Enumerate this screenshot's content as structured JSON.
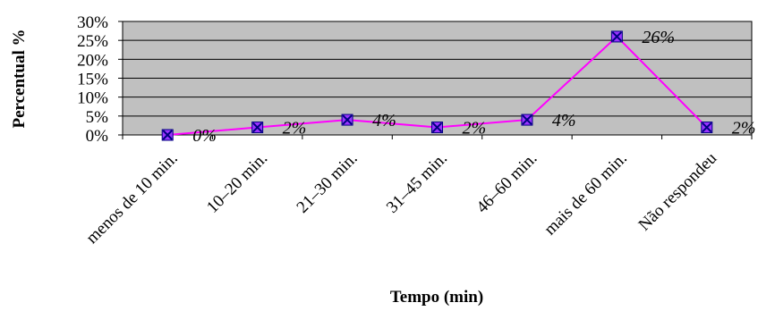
{
  "chart_data": {
    "type": "line",
    "ylabel": "Percentual %",
    "xlabel": "Tempo (min)",
    "ylim": [
      0,
      30
    ],
    "y_tick_labels": [
      "30%",
      "25%",
      "20%",
      "15%",
      "10%",
      "5%",
      "0%"
    ],
    "categories": [
      "menos de 10 min.",
      "10–20 min.",
      "21–30 min.",
      "31–45 min.",
      "46–60 min.",
      "mais de 60 min.",
      "Não respondeu"
    ],
    "series": [
      {
        "values": [
          0,
          2,
          4,
          2,
          4,
          26,
          2
        ]
      }
    ],
    "data_labels": [
      "0%",
      "2%",
      "4%",
      "2%",
      "4%",
      "26%",
      "2%"
    ],
    "grid": true,
    "plot_background": "#c0c0c0",
    "line_color": "#ff00ff",
    "marker_fill": "#9933ff",
    "marker_cross_color": "#000080"
  }
}
